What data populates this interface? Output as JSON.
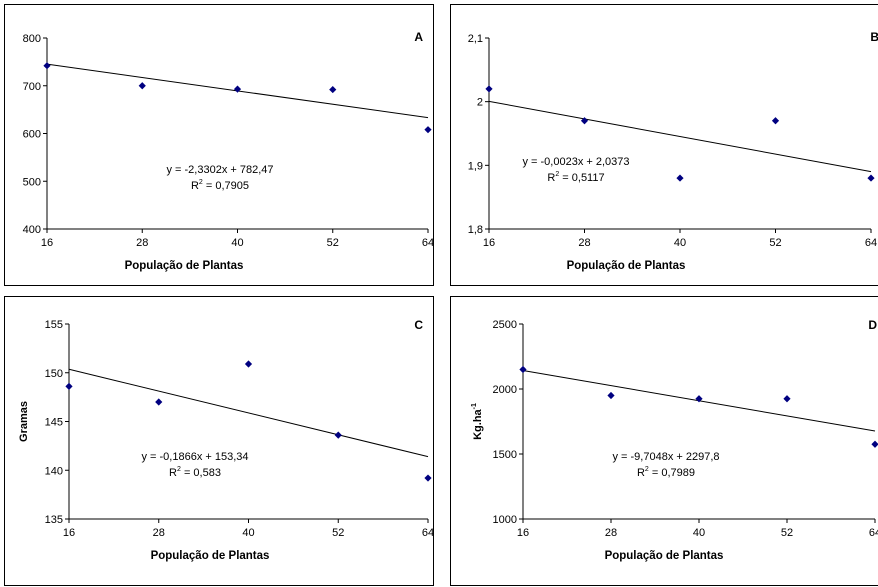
{
  "chart_data": [
    {
      "type": "scatter",
      "panel_letter": "A",
      "xlabel": "População de Plantas",
      "ylabel": "",
      "x_ticks": [
        "16",
        "28",
        "40",
        "52",
        "64"
      ],
      "y_ticks": [
        "400",
        "500",
        "600",
        "700",
        "800"
      ],
      "xlim": [
        16,
        64
      ],
      "ylim": [
        400,
        800
      ],
      "points": [
        {
          "x": 16,
          "y": 742
        },
        {
          "x": 28,
          "y": 700
        },
        {
          "x": 40,
          "y": 693
        },
        {
          "x": 52,
          "y": 692
        },
        {
          "x": 64,
          "y": 608
        }
      ],
      "trendline": {
        "slope": -2.3302,
        "intercept": 782.47
      },
      "equation": "y = -2,3302x + 782,47",
      "r2_value": " = 0,7905",
      "grid": false
    },
    {
      "type": "scatter",
      "panel_letter": "B",
      "xlabel": "População de Plantas",
      "ylabel": "",
      "x_ticks": [
        "16",
        "28",
        "40",
        "52",
        "64"
      ],
      "y_ticks": [
        "1,8",
        "1,9",
        "2",
        "2,1"
      ],
      "xlim": [
        16,
        64
      ],
      "ylim": [
        1.8,
        2.1
      ],
      "points": [
        {
          "x": 16,
          "y": 2.02
        },
        {
          "x": 28,
          "y": 1.97
        },
        {
          "x": 40,
          "y": 1.88
        },
        {
          "x": 52,
          "y": 1.97
        },
        {
          "x": 64,
          "y": 1.88
        }
      ],
      "trendline": {
        "slope": -0.0023,
        "intercept": 2.0373
      },
      "equation": "y = -0,0023x + 2,0373",
      "r2_value": " = 0,5117",
      "grid": false
    },
    {
      "type": "scatter",
      "panel_letter": "C",
      "xlabel": "População de Plantas",
      "ylabel": "Gramas",
      "x_ticks": [
        "16",
        "28",
        "40",
        "52",
        "64"
      ],
      "y_ticks": [
        "135",
        "140",
        "145",
        "150",
        "155"
      ],
      "xlim": [
        16,
        64
      ],
      "ylim": [
        135,
        155
      ],
      "points": [
        {
          "x": 16,
          "y": 148.6
        },
        {
          "x": 28,
          "y": 147.0
        },
        {
          "x": 40,
          "y": 150.9
        },
        {
          "x": 52,
          "y": 143.6
        },
        {
          "x": 64,
          "y": 139.2
        }
      ],
      "trendline": {
        "slope": -0.1866,
        "intercept": 153.34
      },
      "equation": "y = -0,1866x + 153,34",
      "r2_value": " = 0,583",
      "grid": false
    },
    {
      "type": "scatter",
      "panel_letter": "D",
      "xlabel": "População de Plantas",
      "ylabel": "Kg.ha",
      "ylabel_superscript": "-1",
      "x_ticks": [
        "16",
        "28",
        "40",
        "52",
        "64"
      ],
      "y_ticks": [
        "1000",
        "1500",
        "2000",
        "2500"
      ],
      "xlim": [
        16,
        64
      ],
      "ylim": [
        1000,
        2500
      ],
      "points": [
        {
          "x": 16,
          "y": 2150
        },
        {
          "x": 28,
          "y": 1950
        },
        {
          "x": 40,
          "y": 1925
        },
        {
          "x": 52,
          "y": 1925
        },
        {
          "x": 64,
          "y": 1575
        }
      ],
      "trendline": {
        "slope": -9.7048,
        "intercept": 2297.8
      },
      "equation": "y = -9,7048x + 2297,8",
      "r2_value": " = 0,7989",
      "grid": false
    }
  ]
}
